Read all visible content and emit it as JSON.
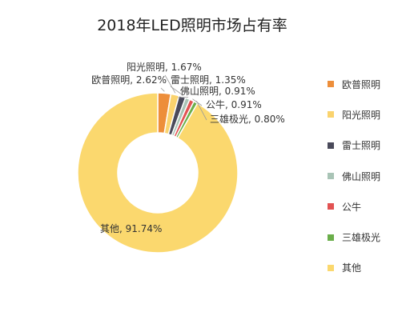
{
  "chart_data": {
    "type": "pie",
    "variant": "donut",
    "title": "2018年LED照明市场占有率",
    "slices": [
      {
        "name": "欧普照明",
        "value": 2.62,
        "label": "欧普照明, 2.62%",
        "color": "#ED8E3A"
      },
      {
        "name": "阳光照明",
        "value": 1.67,
        "label": "阳光照明, 1.67%",
        "color": "#FAD36E"
      },
      {
        "name": "雷士照明",
        "value": 1.35,
        "label": "雷士照明, 1.35%",
        "color": "#4A4A5A"
      },
      {
        "name": "佛山照明",
        "value": 0.91,
        "label": "佛山照明, 0.91%",
        "color": "#A9C4B6"
      },
      {
        "name": "公牛",
        "value": 0.91,
        "label": "公牛, 0.91%",
        "color": "#E25252"
      },
      {
        "name": "三雄极光",
        "value": 0.8,
        "label": "三雄极光, 0.80%",
        "color": "#6AAE4A"
      },
      {
        "name": "其他",
        "value": 91.74,
        "label": "其他, 91.74%",
        "color": "#FBD86E"
      }
    ],
    "legend_position": "right"
  }
}
